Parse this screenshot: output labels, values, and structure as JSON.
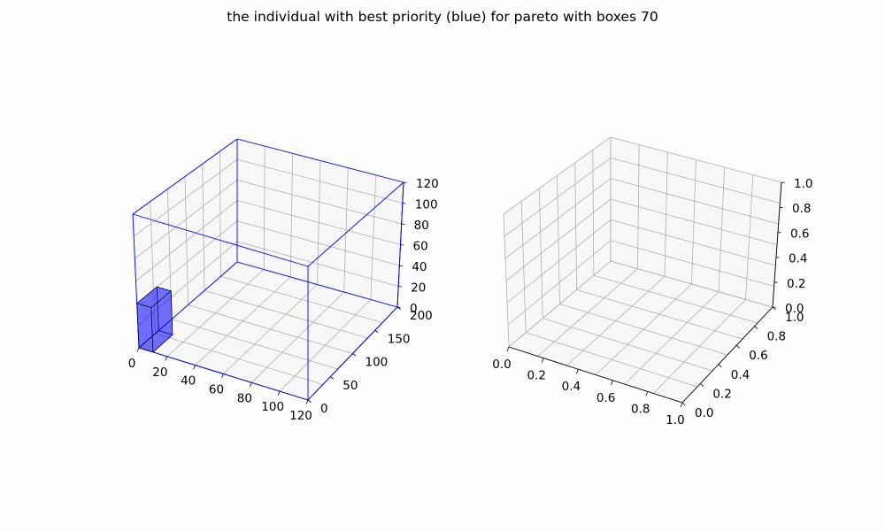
{
  "title": "the individual with best priority (blue) for pareto with boxes 70",
  "chart_data": [
    {
      "type": "3d-box",
      "grid": true,
      "container": {
        "x": 120,
        "y": 200,
        "z": 120,
        "edge_color": "#0000ff"
      },
      "boxes": [
        {
          "x": [
            0,
            10
          ],
          "y": [
            0,
            40
          ],
          "z": [
            0,
            40
          ],
          "color": "#0000ff",
          "opacity": 0.6
        }
      ],
      "x_ticks": [
        "0",
        "20",
        "40",
        "60",
        "80",
        "100",
        "120"
      ],
      "y_ticks": [
        "0",
        "50",
        "100",
        "150",
        "200"
      ],
      "z_ticks": [
        "0",
        "20",
        "40",
        "60",
        "80",
        "100",
        "120"
      ]
    },
    {
      "type": "3d-empty",
      "grid": true,
      "x_ticks": [
        "0.0",
        "0.2",
        "0.4",
        "0.6",
        "0.8",
        "1.0"
      ],
      "y_ticks": [
        "0.0",
        "0.2",
        "0.4",
        "0.6",
        "0.8",
        "1.0"
      ],
      "z_ticks": [
        "0.0",
        "0.2",
        "0.4",
        "0.6",
        "0.8",
        "1.0"
      ]
    }
  ]
}
